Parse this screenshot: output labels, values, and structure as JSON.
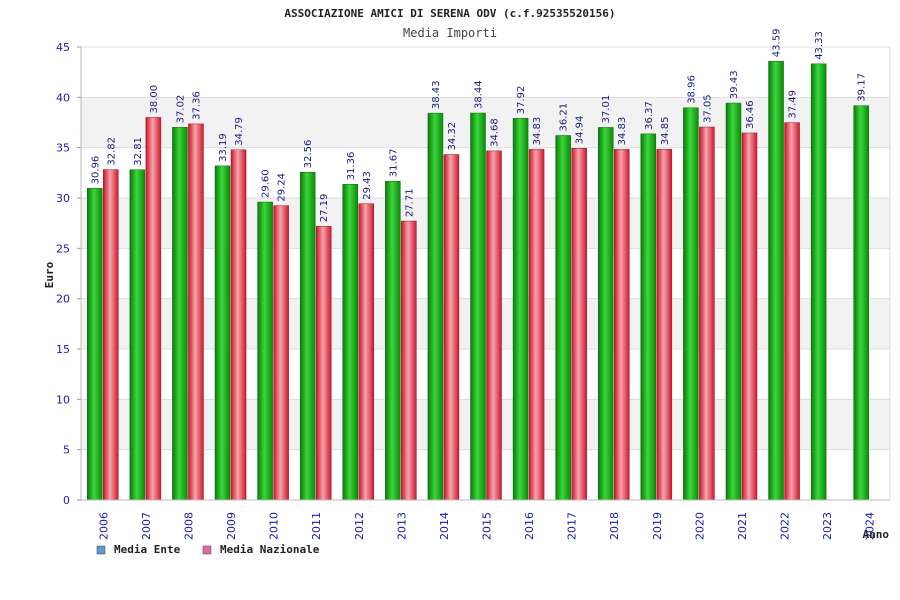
{
  "chart_data": {
    "type": "bar",
    "title": "ASSOCIAZIONE AMICI DI SERENA ODV (c.f.92535520156)",
    "subtitle": "Media Importi",
    "xlabel": "Anno",
    "ylabel": "Euro",
    "ylim": [
      0,
      45
    ],
    "yticks": [
      "0",
      "5",
      "10",
      "15",
      "20",
      "25",
      "30",
      "35",
      "40",
      "45"
    ],
    "categories": [
      "2006",
      "2007",
      "2008",
      "2009",
      "2010",
      "2011",
      "2012",
      "2013",
      "2014",
      "2015",
      "2016",
      "2017",
      "2018",
      "2019",
      "2020",
      "2021",
      "2022",
      "2023",
      "2024"
    ],
    "series": [
      {
        "name": "Media Ente",
        "color": "#22b722",
        "values": [
          30.96,
          32.81,
          37.02,
          33.19,
          29.6,
          32.56,
          31.36,
          31.67,
          38.43,
          38.44,
          37.92,
          36.21,
          37.01,
          36.37,
          38.96,
          39.43,
          43.59,
          43.33,
          39.17
        ],
        "labels": [
          "30.96",
          "32.81",
          "37.02",
          "33.19",
          "29.60",
          "32.56",
          "31.36",
          "31.67",
          "38.43",
          "38.44",
          "37.92",
          "36.21",
          "37.01",
          "36.37",
          "38.96",
          "39.43",
          "43.59",
          "43.33",
          "39.17"
        ]
      },
      {
        "name": "Media Nazionale",
        "color": "#e0303c",
        "values": [
          32.82,
          38.0,
          37.36,
          34.79,
          29.24,
          27.19,
          29.43,
          27.71,
          34.32,
          34.68,
          34.83,
          34.94,
          34.83,
          34.85,
          37.05,
          36.46,
          37.49,
          null,
          null
        ],
        "labels": [
          "32.82",
          "38.00",
          "37.36",
          "34.79",
          "29.24",
          "27.19",
          "29.43",
          "27.71",
          "34.32",
          "34.68",
          "34.83",
          "34.94",
          "34.83",
          "34.85",
          "37.05",
          "36.46",
          "37.49",
          null,
          null
        ]
      }
    ],
    "legend": {
      "position": "bottom-left",
      "items": [
        {
          "label": "Media Ente",
          "swatch": "#5b9bd5"
        },
        {
          "label": "Media Nazionale",
          "swatch": "#e06aa8"
        }
      ]
    },
    "grid": true
  }
}
